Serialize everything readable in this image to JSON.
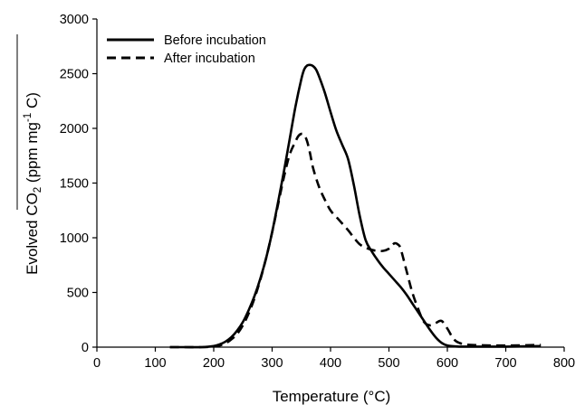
{
  "chart_data": {
    "type": "line",
    "xlabel": "Temperature (°C)",
    "ylabel_parts": {
      "pre": "Evolved CO",
      "sub": "2",
      "mid": " (ppm mg",
      "sup": "-1",
      "post": " C)"
    },
    "xlim": [
      0,
      800
    ],
    "ylim": [
      0,
      3000
    ],
    "x_ticks": [
      0,
      100,
      200,
      300,
      400,
      500,
      600,
      700,
      800
    ],
    "y_ticks": [
      0,
      500,
      1000,
      1500,
      2000,
      2500,
      3000
    ],
    "x_tick_labels": [
      "0",
      "100",
      "200",
      "300",
      "400",
      "500",
      "600",
      "700",
      "800"
    ],
    "y_tick_labels": [
      "0",
      "500",
      "1000",
      "1500",
      "2000",
      "2500",
      "3000"
    ],
    "grid": false,
    "legend_position": "top-left",
    "series": [
      {
        "name": "Before incubation",
        "style": "solid",
        "color": "#000000",
        "x": [
          125,
          150,
          180,
          200,
          210,
          220,
          230,
          240,
          250,
          260,
          270,
          280,
          290,
          300,
          310,
          320,
          330,
          340,
          350,
          355,
          360,
          365,
          370,
          375,
          380,
          390,
          400,
          410,
          420,
          430,
          440,
          450,
          460,
          470,
          480,
          490,
          500,
          510,
          520,
          530,
          540,
          550,
          560,
          570,
          580,
          590,
          600,
          620,
          650,
          700,
          760
        ],
        "y": [
          0,
          0,
          0,
          10,
          25,
          50,
          90,
          150,
          230,
          340,
          470,
          630,
          820,
          1050,
          1320,
          1600,
          1900,
          2200,
          2450,
          2540,
          2575,
          2580,
          2570,
          2540,
          2480,
          2330,
          2150,
          1980,
          1850,
          1720,
          1480,
          1200,
          980,
          880,
          800,
          730,
          670,
          610,
          550,
          480,
          400,
          320,
          240,
          160,
          90,
          40,
          15,
          5,
          5,
          5,
          10
        ]
      },
      {
        "name": "After incubation",
        "style": "dashed",
        "color": "#000000",
        "x": [
          125,
          150,
          180,
          200,
          210,
          220,
          230,
          240,
          250,
          260,
          270,
          280,
          290,
          300,
          310,
          320,
          330,
          340,
          345,
          350,
          355,
          360,
          365,
          370,
          380,
          390,
          400,
          410,
          420,
          430,
          440,
          450,
          460,
          470,
          480,
          490,
          500,
          505,
          510,
          515,
          520,
          530,
          540,
          550,
          560,
          570,
          580,
          590,
          600,
          610,
          620,
          640,
          700,
          760
        ],
        "y": [
          0,
          0,
          0,
          5,
          15,
          35,
          70,
          120,
          200,
          310,
          450,
          620,
          820,
          1050,
          1300,
          1550,
          1760,
          1880,
          1930,
          1950,
          1940,
          1880,
          1770,
          1640,
          1470,
          1350,
          1250,
          1190,
          1130,
          1070,
          1000,
          940,
          910,
          890,
          880,
          880,
          900,
          930,
          950,
          940,
          900,
          700,
          500,
          350,
          230,
          200,
          220,
          240,
          170,
          80,
          40,
          20,
          15,
          20
        ]
      }
    ]
  }
}
